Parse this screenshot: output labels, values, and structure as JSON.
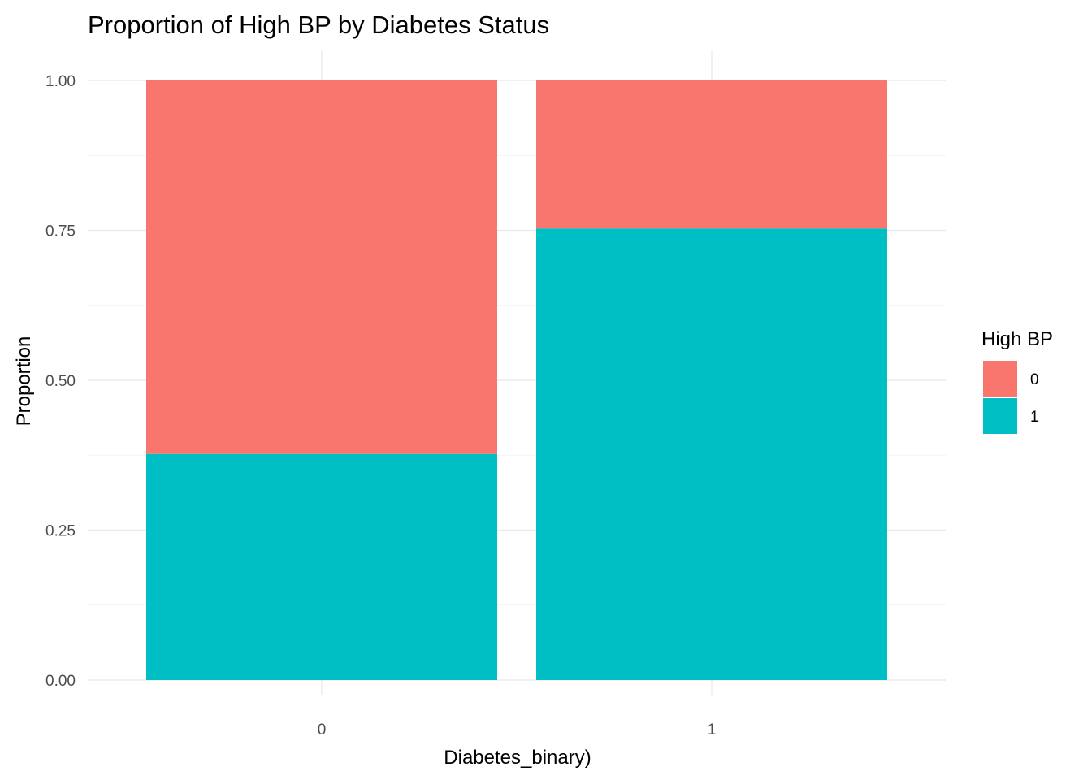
{
  "chart_data": {
    "type": "bar",
    "stacked": true,
    "title": "Proportion of High BP by Diabetes Status",
    "xlabel": "Diabetes_binary)",
    "ylabel": "Proportion",
    "categories": [
      "0",
      "1"
    ],
    "ylim": [
      0,
      1
    ],
    "yticks": [
      "0.00",
      "0.25",
      "0.50",
      "0.75",
      "1.00"
    ],
    "ytick_values": [
      0,
      0.25,
      0.5,
      0.75,
      1.0
    ],
    "grid": true,
    "legend": {
      "title": "High BP",
      "position": "right",
      "entries": [
        "0",
        "1"
      ]
    },
    "series": [
      {
        "name": "1",
        "color": "#00BFC4",
        "values": [
          0.377,
          0.753
        ]
      },
      {
        "name": "0",
        "color": "#F8766D",
        "values": [
          0.623,
          0.247
        ]
      }
    ]
  }
}
